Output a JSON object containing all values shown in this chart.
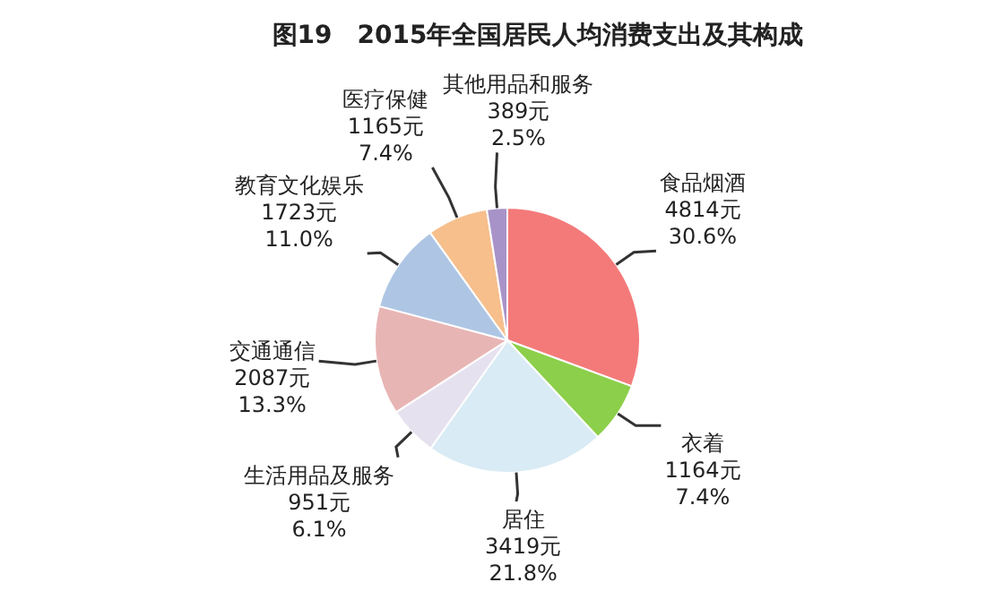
{
  "chart_data": {
    "type": "pie",
    "title": "图19　2015年全国居民人均消费支出及其构成",
    "categories": [
      "食品烟酒",
      "衣着",
      "居住",
      "生活用品及服务",
      "交通通信",
      "教育文化娱乐",
      "医疗保健",
      "其他用品和服务"
    ],
    "values": [
      4814,
      1164,
      3419,
      951,
      2087,
      1723,
      1165,
      389
    ],
    "value_labels": [
      "4814元\n30.6%",
      "1164元\n7.4%",
      "3419元\n21.8%",
      "951元\n6.1%",
      "2087元\n13.3%",
      "1723元\n11.0%",
      "1165元\n7.4%",
      "389元\n2.5%"
    ],
    "colors": [
      "#f47a7a",
      "#8ccf4a",
      "#d9ebf5",
      "#e6e1ef",
      "#e8b5b5",
      "#aec6e4",
      "#f6bf8c",
      "#a893c8"
    ]
  }
}
